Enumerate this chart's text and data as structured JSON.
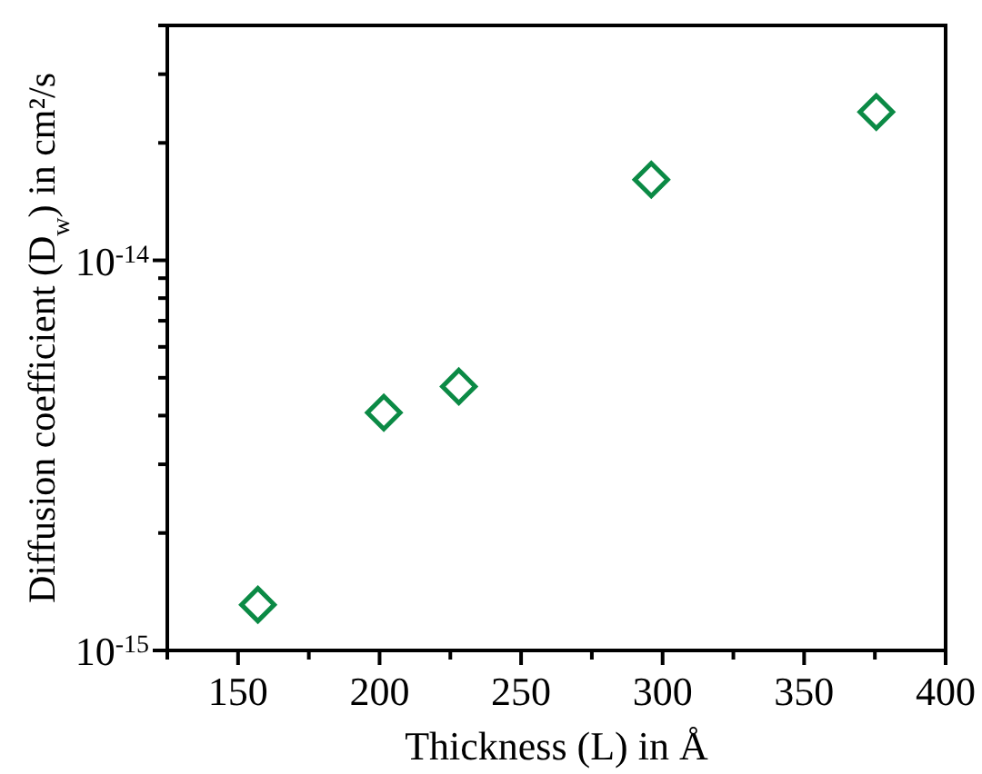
{
  "chart_data": {
    "type": "scatter",
    "xlabel": "Thickness (L) in Å",
    "ylabel": "Diffusion coefficient (D$_{w}$) in cm²/s",
    "x": [
      157,
      201.5,
      228,
      296,
      375.5
    ],
    "series": [
      {
        "color": "#0b8a45",
        "values": [
          1.31e-15,
          4.07e-15,
          4.75e-15,
          1.61e-14,
          2.4e-14
        ]
      }
    ],
    "xlim": [
      125,
      400
    ],
    "xticks": [
      {
        "value": 125,
        "label": null
      },
      150,
      {
        "value": 175,
        "label": null
      },
      200,
      {
        "value": 225,
        "label": null
      },
      250,
      {
        "value": 275,
        "label": null
      },
      300,
      {
        "value": 325,
        "label": null
      },
      350,
      {
        "value": 375,
        "label": null
      },
      400
    ],
    "ylim": [
      1e-15,
      4e-14
    ],
    "yticks": [
      {
        "value": 1e-15,
        "label": "10$^{-15}$"
      },
      {
        "value": 2e-15,
        "label": null
      },
      {
        "value": 3e-15,
        "label": null
      },
      {
        "value": 4e-15,
        "label": null
      },
      {
        "value": 5e-15,
        "label": null
      },
      {
        "value": 6e-15,
        "label": null
      },
      {
        "value": 7e-15,
        "label": null
      },
      {
        "value": 8e-15,
        "label": null
      },
      {
        "value": 9e-15,
        "label": null
      },
      {
        "value": 1e-14,
        "label": "10$^{-14}$"
      },
      {
        "value": 2e-14,
        "label": null
      },
      {
        "value": 3e-14,
        "label": null
      },
      {
        "value": 4e-14,
        "label": null
      }
    ],
    "log": "y",
    "marker": "diamond",
    "grid": false
  }
}
